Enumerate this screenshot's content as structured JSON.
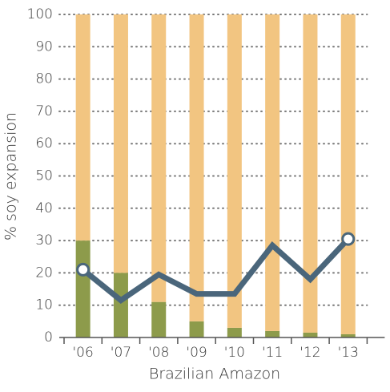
{
  "chart_data": {
    "type": "bar",
    "stacked": true,
    "ylabel": "% soy expansion",
    "xlabel": "Brazilian Amazon",
    "categories": [
      "'06",
      "'07",
      "'08",
      "'09",
      "'10",
      "'11",
      "'12",
      "'13"
    ],
    "series": [
      {
        "color": "#8d9b4b",
        "values": [
          30,
          20,
          11,
          5,
          3,
          2,
          1.5,
          1
        ]
      },
      {
        "color": "#f2c581",
        "values": [
          70,
          80,
          89,
          95,
          97,
          98,
          98.5,
          99
        ]
      },
      {
        "type": "line",
        "color": "#4a667b",
        "values": [
          21,
          11.5,
          19.5,
          13.5,
          13.5,
          28.5,
          18,
          30.5
        ]
      }
    ],
    "ylim": [
      0,
      100
    ],
    "yticks": [
      0,
      10,
      20,
      30,
      40,
      50,
      60,
      70,
      80,
      90,
      100
    ],
    "grid": true
  }
}
